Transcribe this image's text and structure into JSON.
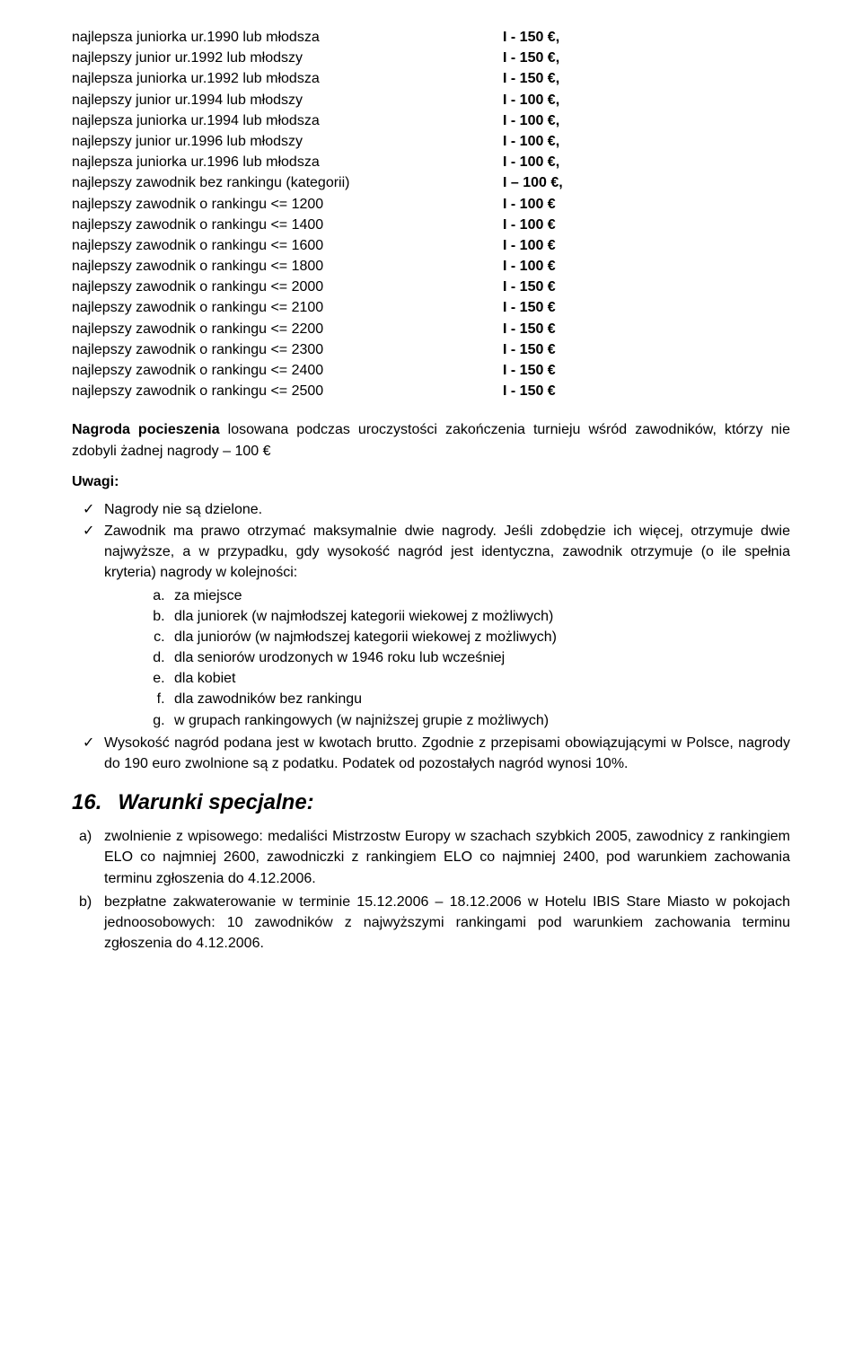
{
  "prizes": {
    "rows": [
      {
        "left": "najlepsza juniorka ur.1990 lub młodsza",
        "right": "I - 150 €,"
      },
      {
        "left": "najlepszy junior ur.1992 lub młodszy",
        "right": "I - 150 €,"
      },
      {
        "left": "najlepsza juniorka ur.1992 lub młodsza",
        "right": "I - 150 €,"
      },
      {
        "left": "najlepszy junior ur.1994 lub młodszy",
        "right": "I - 100 €,"
      },
      {
        "left": "najlepsza juniorka ur.1994 lub młodsza",
        "right": "I - 100 €,"
      },
      {
        "left": "najlepszy junior ur.1996 lub młodszy",
        "right": "I - 100 €,"
      },
      {
        "left": "najlepsza juniorka ur.1996 lub młodsza",
        "right": "I - 100 €,"
      },
      {
        "left": "najlepszy zawodnik bez rankingu (kategorii)",
        "right": "I – 100 €,"
      },
      {
        "left": "najlepszy zawodnik o rankingu <= 1200",
        "right": "I - 100 €"
      },
      {
        "left": "najlepszy zawodnik o rankingu <= 1400",
        "right": "I - 100 €"
      },
      {
        "left": "najlepszy zawodnik o rankingu <= 1600",
        "right": "I - 100 €"
      },
      {
        "left": "najlepszy zawodnik o rankingu <= 1800",
        "right": "I - 100 €"
      },
      {
        "left": "najlepszy zawodnik o rankingu <= 2000",
        "right": "I - 150 €"
      },
      {
        "left": "najlepszy zawodnik o rankingu <= 2100",
        "right": "I - 150 €"
      },
      {
        "left": "najlepszy zawodnik o rankingu <= 2200",
        "right": "I - 150 €"
      },
      {
        "left": "najlepszy zawodnik o rankingu <= 2300",
        "right": "I - 150 €"
      },
      {
        "left": "najlepszy zawodnik o rankingu <= 2400",
        "right": "I - 150 €"
      },
      {
        "left": "najlepszy zawodnik o rankingu <= 2500",
        "right": "I - 150 €"
      }
    ]
  },
  "consolation": {
    "bold": "Nagroda pocieszenia",
    "rest": " losowana podczas uroczystości zakończenia turnieju wśród zawodników, którzy nie zdobyli żadnej nagrody – 100 €"
  },
  "uwagi_label": "Uwagi:",
  "uwagi_items": {
    "i0": "Nagrody nie są dzielone.",
    "i1": "Zawodnik ma prawo otrzymać maksymalnie dwie nagrody. Jeśli zdobędzie ich więcej, otrzymuje dwie najwyższe, a w przypadku, gdy wysokość nagród jest identyczna, zawodnik otrzymuje (o ile spełnia kryteria) nagrody w kolejności:",
    "sub": {
      "a": "za miejsce",
      "b": "dla juniorek (w najmłodszej kategorii wiekowej z możliwych)",
      "c": "dla juniorów (w najmłodszej kategorii wiekowej z możliwych)",
      "d": "dla seniorów urodzonych w 1946 roku lub wcześniej",
      "e": "dla kobiet",
      "f": "dla zawodników bez rankingu",
      "g": "w grupach rankingowych (w najniższej grupie z możliwych)"
    },
    "i2": "Wysokość nagród podana jest w kwotach brutto. Zgodnie z przepisami obowiązującymi w Polsce, nagrody do 190 euro zwolnione są z podatku. Podatek od pozostałych nagród wynosi 10%."
  },
  "section": {
    "num": "16.",
    "title": "Warunki specjalne:"
  },
  "special": {
    "a": "zwolnienie z wpisowego: medaliści Mistrzostw Europy w szachach szybkich 2005, zawodnicy z rankingiem ELO co najmniej 2600, zawodniczki z rankingiem  ELO co najmniej 2400, pod warunkiem zachowania terminu zgłoszenia do 4.12.2006.",
    "b": "bezpłatne zakwaterowanie w terminie 15.12.2006 – 18.12.2006 w Hotelu IBIS Stare Miasto w pokojach jednoosobowych: 10 zawodników z najwyższymi rankingami pod warunkiem zachowania terminu zgłoszenia do 4.12.2006.",
    "marker_a": "a)",
    "marker_b": "b)"
  }
}
